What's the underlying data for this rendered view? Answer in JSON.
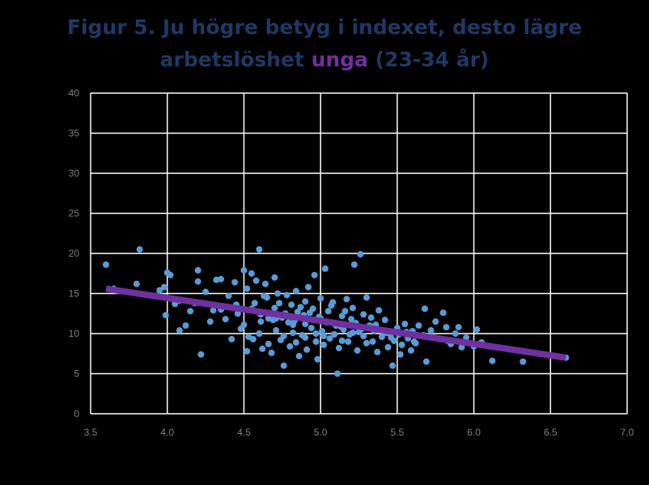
{
  "title": {
    "line1": "Figur 5. Ju högre betyg i indexet, desto lägre",
    "line2_prefix": "arbetslöshet ",
    "line2_highlight": "unga",
    "line2_suffix": " (23-34 år)"
  },
  "colors": {
    "title": "#1f3864",
    "highlight": "#7030a0",
    "points": "#5b9bd5",
    "trend": "#7030a0",
    "plot_bg": "#000000",
    "grid": "#ffffff"
  },
  "chart_data": {
    "type": "scatter",
    "title": "Figur 5. Ju högre betyg i indexet, desto lägre arbetslöshet unga (23-34 år)",
    "xlabel": "",
    "ylabel": "",
    "xlim": [
      3.5,
      7.0
    ],
    "ylim": [
      0,
      40
    ],
    "xticks": [
      "3.5",
      "4.0",
      "4.5",
      "5.0",
      "5.5",
      "6.0",
      "6.5",
      "7.0"
    ],
    "yticks": [
      "0",
      "5",
      "10",
      "15",
      "20",
      "25",
      "30",
      "35",
      "40"
    ],
    "grid": true,
    "legend": "none",
    "trendline": {
      "x": [
        3.6,
        6.6
      ],
      "y": [
        15.6,
        7.0
      ]
    },
    "points": [
      [
        3.6,
        18.6
      ],
      [
        3.65,
        15.6
      ],
      [
        3.82,
        20.5
      ],
      [
        3.8,
        16.2
      ],
      [
        3.95,
        15.4
      ],
      [
        3.98,
        15.8
      ],
      [
        4.0,
        17.6
      ],
      [
        4.02,
        17.3
      ],
      [
        3.99,
        12.3
      ],
      [
        4.05,
        13.7
      ],
      [
        4.08,
        10.4
      ],
      [
        4.12,
        11.0
      ],
      [
        4.18,
        13.8
      ],
      [
        4.2,
        16.5
      ],
      [
        4.2,
        17.9
      ],
      [
        4.22,
        7.4
      ],
      [
        4.25,
        15.2
      ],
      [
        4.28,
        11.5
      ],
      [
        4.32,
        16.7
      ],
      [
        4.35,
        16.8
      ],
      [
        4.35,
        13.0
      ],
      [
        4.38,
        11.8
      ],
      [
        4.4,
        14.7
      ],
      [
        4.42,
        9.3
      ],
      [
        4.44,
        16.4
      ],
      [
        4.46,
        12.5
      ],
      [
        4.48,
        10.6
      ],
      [
        4.5,
        17.9
      ],
      [
        4.5,
        11.1
      ],
      [
        4.52,
        7.8
      ],
      [
        4.53,
        9.6
      ],
      [
        4.55,
        13.1
      ],
      [
        4.55,
        17.5
      ],
      [
        4.57,
        13.8
      ],
      [
        4.58,
        16.6
      ],
      [
        4.6,
        10.0
      ],
      [
        4.6,
        20.5
      ],
      [
        4.61,
        12.4
      ],
      [
        4.62,
        8.1
      ],
      [
        4.64,
        16.2
      ],
      [
        4.65,
        14.5
      ],
      [
        4.66,
        11.9
      ],
      [
        4.68,
        7.6
      ],
      [
        4.7,
        17.0
      ],
      [
        4.7,
        13.2
      ],
      [
        4.71,
        10.4
      ],
      [
        4.72,
        15.0
      ],
      [
        4.74,
        9.2
      ],
      [
        4.75,
        12.0
      ],
      [
        4.76,
        6.0
      ],
      [
        4.78,
        14.8
      ],
      [
        4.79,
        11.4
      ],
      [
        4.8,
        8.4
      ],
      [
        4.81,
        13.6
      ],
      [
        4.82,
        10.1
      ],
      [
        4.84,
        15.3
      ],
      [
        4.85,
        12.7
      ],
      [
        4.86,
        7.2
      ],
      [
        4.88,
        9.8
      ],
      [
        4.9,
        14.0
      ],
      [
        4.9,
        11.2
      ],
      [
        4.91,
        8.0
      ],
      [
        4.92,
        15.8
      ],
      [
        4.94,
        10.7
      ],
      [
        4.95,
        13.1
      ],
      [
        4.96,
        17.3
      ],
      [
        4.97,
        9.0
      ],
      [
        4.98,
        6.8
      ],
      [
        5.0,
        11.9
      ],
      [
        5.0,
        14.4
      ],
      [
        5.01,
        10.3
      ],
      [
        5.02,
        8.6
      ],
      [
        5.03,
        18.1
      ],
      [
        5.05,
        12.8
      ],
      [
        5.06,
        9.4
      ],
      [
        5.08,
        13.9
      ],
      [
        5.1,
        11.0
      ],
      [
        5.11,
        5.0
      ],
      [
        5.12,
        8.2
      ],
      [
        5.14,
        12.2
      ],
      [
        5.15,
        10.5
      ],
      [
        5.17,
        14.3
      ],
      [
        5.18,
        9.0
      ],
      [
        5.2,
        11.8
      ],
      [
        5.21,
        13.2
      ],
      [
        5.22,
        18.6
      ],
      [
        5.24,
        7.9
      ],
      [
        5.25,
        10.2
      ],
      [
        5.26,
        19.9
      ],
      [
        5.28,
        12.4
      ],
      [
        5.3,
        8.8
      ],
      [
        5.3,
        14.5
      ],
      [
        5.32,
        11.0
      ],
      [
        5.35,
        10.3
      ],
      [
        5.37,
        7.7
      ],
      [
        5.38,
        12.9
      ],
      [
        5.4,
        9.6
      ],
      [
        5.42,
        11.7
      ],
      [
        5.44,
        8.3
      ],
      [
        5.45,
        10.0
      ],
      [
        5.47,
        6.0
      ],
      [
        5.48,
        9.1
      ],
      [
        5.5,
        10.7
      ],
      [
        5.52,
        7.4
      ],
      [
        5.53,
        8.6
      ],
      [
        5.55,
        11.2
      ],
      [
        5.57,
        9.4
      ],
      [
        5.59,
        7.9
      ],
      [
        5.6,
        10.3
      ],
      [
        5.62,
        8.8
      ],
      [
        5.64,
        11.0
      ],
      [
        5.66,
        9.7
      ],
      [
        5.68,
        13.1
      ],
      [
        5.69,
        6.5
      ],
      [
        5.72,
        10.4
      ],
      [
        5.75,
        11.5
      ],
      [
        5.78,
        9.3
      ],
      [
        5.8,
        12.6
      ],
      [
        5.82,
        10.8
      ],
      [
        5.85,
        8.7
      ],
      [
        5.88,
        10.0
      ],
      [
        5.9,
        10.8
      ],
      [
        5.92,
        8.3
      ],
      [
        5.95,
        9.5
      ],
      [
        6.0,
        8.4
      ],
      [
        6.02,
        10.5
      ],
      [
        6.05,
        8.9
      ],
      [
        6.12,
        6.6
      ],
      [
        6.32,
        6.5
      ],
      [
        6.6,
        7.0
      ],
      [
        4.08,
        14.1
      ],
      [
        4.15,
        12.8
      ],
      [
        4.3,
        12.9
      ],
      [
        4.45,
        13.6
      ],
      [
        4.52,
        15.6
      ],
      [
        4.63,
        14.7
      ],
      [
        4.69,
        11.7
      ],
      [
        4.73,
        13.8
      ],
      [
        4.77,
        12.5
      ],
      [
        4.83,
        11.6
      ],
      [
        4.87,
        13.3
      ],
      [
        4.93,
        12.6
      ],
      [
        4.99,
        12.1
      ],
      [
        5.04,
        11.4
      ],
      [
        5.07,
        13.5
      ],
      [
        5.13,
        10.9
      ],
      [
        5.16,
        12.8
      ],
      [
        5.19,
        9.9
      ],
      [
        5.23,
        11.3
      ],
      [
        5.27,
        10.6
      ],
      [
        5.33,
        12.0
      ],
      [
        5.36,
        11.1
      ],
      [
        5.43,
        10.1
      ],
      [
        5.46,
        9.5
      ],
      [
        5.51,
        9.9
      ],
      [
        5.56,
        10.2
      ],
      [
        5.61,
        9.0
      ],
      [
        5.67,
        9.8
      ],
      [
        5.73,
        9.6
      ],
      [
        5.83,
        9.1
      ],
      [
        4.56,
        9.3
      ],
      [
        4.66,
        8.7
      ],
      [
        4.76,
        9.7
      ],
      [
        4.84,
        8.9
      ],
      [
        4.9,
        9.5
      ],
      [
        4.97,
        10.0
      ],
      [
        5.02,
        9.7
      ],
      [
        5.09,
        9.9
      ],
      [
        5.14,
        9.1
      ],
      [
        5.21,
        10.1
      ],
      [
        5.28,
        9.7
      ],
      [
        5.34,
        9.0
      ],
      [
        4.61,
        11.5
      ],
      [
        4.71,
        11.9
      ],
      [
        4.82,
        11.1
      ],
      [
        4.89,
        12.3
      ]
    ]
  }
}
